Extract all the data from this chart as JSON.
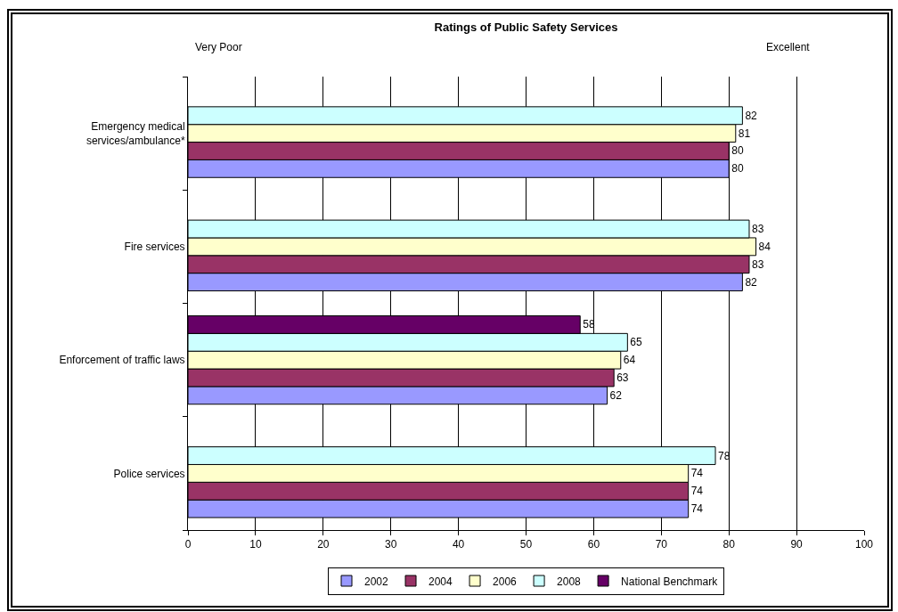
{
  "chart_data": {
    "type": "bar",
    "orientation": "horizontal",
    "title": "Ratings of Public Safety Services",
    "annotations": [
      "Very Poor",
      "Excellent"
    ],
    "categories": [
      "Emergency medical services/ambulance*",
      "Fire services",
      "Enforcement of traffic laws",
      "Police services"
    ],
    "series": [
      {
        "name": "2002",
        "color": "#9999ff",
        "values": [
          80,
          82,
          62,
          74
        ]
      },
      {
        "name": "2004",
        "color": "#993366",
        "values": [
          80,
          83,
          63,
          74
        ]
      },
      {
        "name": "2006",
        "color": "#ffffcc",
        "values": [
          81,
          84,
          64,
          74
        ]
      },
      {
        "name": "2008",
        "color": "#ccffff",
        "values": [
          82,
          83,
          65,
          78
        ]
      },
      {
        "name": "National Benchmark",
        "color": "#660066",
        "values": [
          null,
          null,
          58,
          null
        ]
      }
    ],
    "xlim": [
      0,
      100
    ],
    "xticks": [
      0,
      10,
      20,
      30,
      40,
      50,
      60,
      70,
      80,
      90,
      100
    ],
    "grid": "x",
    "legend": "bottom",
    "data_labels": true
  }
}
